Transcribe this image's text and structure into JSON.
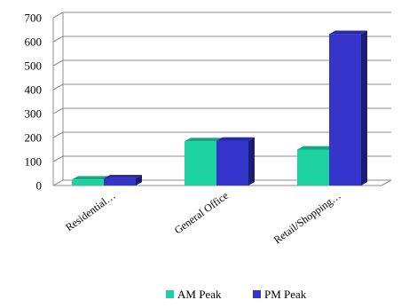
{
  "chart_data": {
    "type": "bar",
    "categories": [
      "Residential…",
      "General Office",
      "Retail/Shopping…"
    ],
    "series": [
      {
        "name": "AM Peak",
        "values": [
          25,
          185,
          150
        ],
        "color": "#1ED1A0"
      },
      {
        "name": "PM Peak",
        "values": [
          30,
          187,
          632
        ],
        "color": "#3535CC"
      }
    ],
    "ylim": [
      0,
      700
    ],
    "yticks": [
      0,
      100,
      200,
      300,
      400,
      500,
      600,
      700
    ],
    "grid": true,
    "legend_position": "bottom",
    "style": "3d-bar"
  }
}
